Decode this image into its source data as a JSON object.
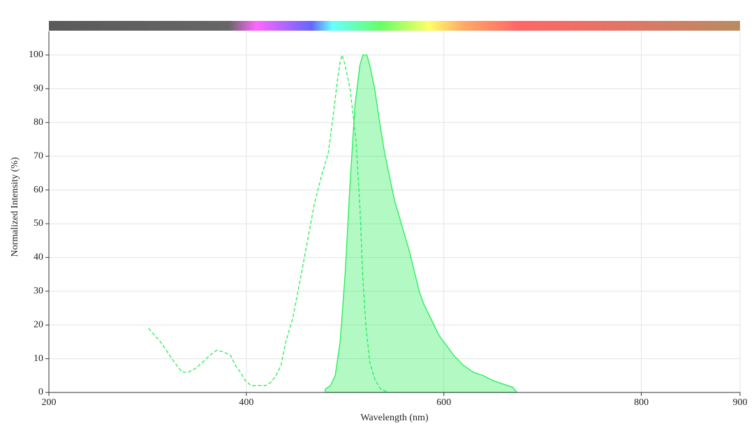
{
  "chart_data": {
    "type": "line",
    "x_label": "Wavelength (nm)",
    "y_label": "Normalized Intensity (%)",
    "xlim": [
      200,
      900
    ],
    "xticks": [
      200,
      400,
      600,
      800,
      900
    ],
    "ylim": [
      0,
      107
    ],
    "yticks": [
      0,
      10,
      20,
      30,
      40,
      50,
      60,
      70,
      80,
      90,
      100
    ],
    "grid": true,
    "series": [
      {
        "color": "#22ee55",
        "style": "dashed",
        "fill": false,
        "x": [
          301,
          313,
          327,
          335,
          341,
          348,
          356,
          363,
          370,
          377,
          384,
          389,
          394,
          399,
          405,
          412,
          419,
          425,
          430,
          435,
          440,
          447,
          455,
          462,
          469,
          476,
          483,
          488,
          492,
          495,
          497,
          500,
          505,
          511,
          515,
          518,
          521,
          525,
          530,
          536,
          544
        ],
        "values": [
          19,
          15,
          9,
          6,
          6,
          7,
          9,
          11,
          12.5,
          12,
          11,
          8,
          6,
          3.5,
          2,
          2,
          2,
          3,
          5,
          8,
          15,
          22,
          34,
          45,
          56,
          64,
          71,
          82,
          92,
          98,
          100,
          97,
          90,
          75,
          55,
          34,
          20,
          9,
          4,
          1,
          0
        ]
      },
      {
        "color": "#22ee55",
        "style": "solid",
        "fill": true,
        "x": [
          480,
          485,
          490,
          495,
          500,
          505,
          510,
          515,
          518,
          522,
          525,
          530,
          535,
          540,
          545,
          550,
          555,
          560,
          565,
          570,
          575,
          580,
          585,
          590,
          595,
          600,
          610,
          620,
          630,
          640,
          650,
          660,
          670,
          674
        ],
        "values": [
          1,
          2,
          5,
          15,
          35,
          62,
          85,
          97,
          100,
          100,
          97,
          90,
          80,
          71,
          64,
          57,
          52,
          47,
          42,
          36,
          30,
          26,
          23,
          20,
          17,
          15,
          11,
          8,
          6,
          5,
          3.5,
          2.5,
          1.5,
          0
        ]
      }
    ]
  }
}
